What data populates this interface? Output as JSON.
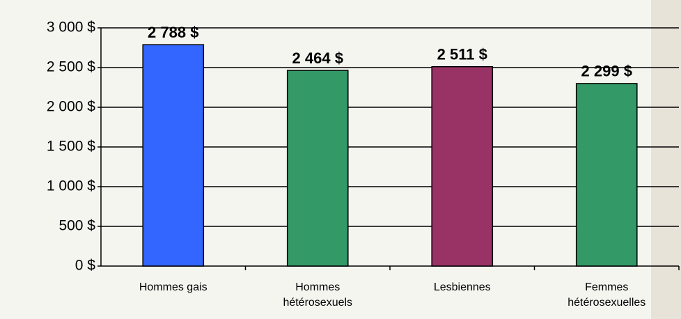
{
  "chart_data": {
    "type": "bar",
    "categories": [
      "Hommes gais",
      "Hommes hétérosexuels",
      "Lesbiennes",
      "Femmes hétérosexuelles"
    ],
    "values": [
      2788,
      2464,
      2511,
      2299
    ],
    "value_labels": [
      "2 788 $",
      "2 464 $",
      "2 511 $",
      "2 299 $"
    ],
    "colors": [
      "#3366ff",
      "#339966",
      "#993366",
      "#339966"
    ],
    "ylim": [
      0,
      3000
    ],
    "yticks": [
      {
        "value": 0,
        "label": "0 $"
      },
      {
        "value": 500,
        "label": "500 $"
      },
      {
        "value": 1000,
        "label": "1 000 $"
      },
      {
        "value": 1500,
        "label": "1 500 $"
      },
      {
        "value": 2000,
        "label": "2 000 $"
      },
      {
        "value": 2500,
        "label": "2 500 $"
      },
      {
        "value": 3000,
        "label": "3 000 $"
      }
    ],
    "grid": true
  }
}
